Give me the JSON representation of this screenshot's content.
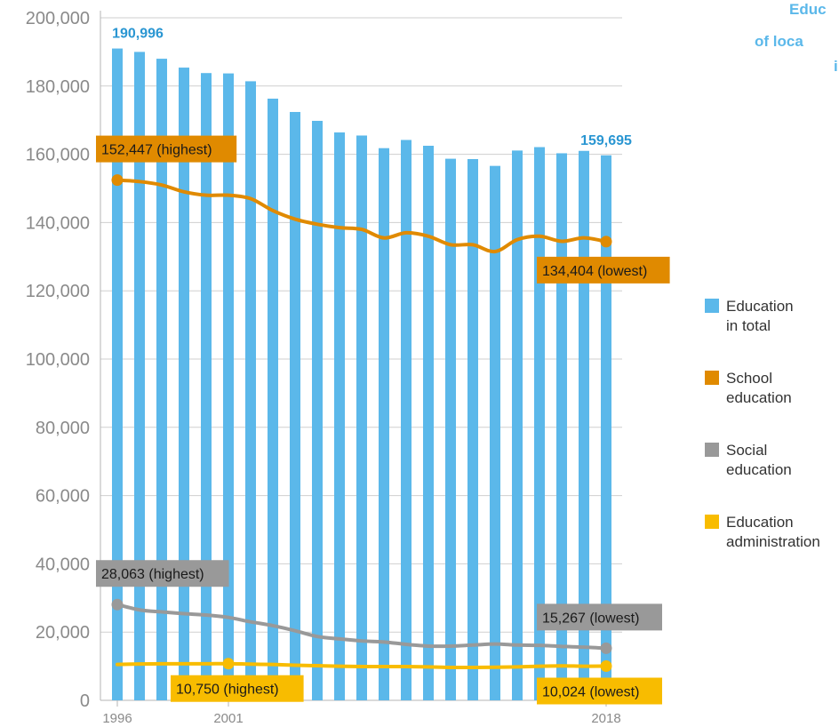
{
  "title": {
    "lines": [
      "Educ",
      "of loca",
      "i"
    ]
  },
  "legend": [
    {
      "line1": "Education",
      "line2": "in total",
      "color": "#5bb8ea"
    },
    {
      "line1": "School",
      "line2": "education",
      "color": "#e08a00"
    },
    {
      "line1": "Social",
      "line2": "education",
      "color": "#999999"
    },
    {
      "line1": "Education",
      "line2": "administration",
      "color": "#f8bc00"
    }
  ],
  "chart_data": {
    "type": "bar",
    "ylim": [
      0,
      200000
    ],
    "y_ticks": [
      "0",
      "20,000",
      "40,000",
      "60,000",
      "80,000",
      "100,000",
      "120,000",
      "140,000",
      "160,000",
      "180,000",
      "200,000"
    ],
    "y_tick_values": [
      0,
      20000,
      40000,
      60000,
      80000,
      100000,
      120000,
      140000,
      160000,
      180000,
      200000
    ],
    "x": [
      1996,
      1997,
      1998,
      1999,
      2000,
      2001,
      2002,
      2003,
      2004,
      2005,
      2006,
      2007,
      2008,
      2009,
      2010,
      2011,
      2012,
      2013,
      2014,
      2015,
      2016,
      2017,
      2018
    ],
    "x_tick_labels": [
      {
        "year": 1996,
        "label": "1996"
      },
      {
        "year": 2001,
        "label": "2001"
      },
      {
        "year": 2018,
        "label": "2018"
      }
    ],
    "grid": true,
    "legend_position": "right",
    "series": [
      {
        "name": "Education in total",
        "kind": "bar",
        "color": "#5bb8ea",
        "values": [
          190996,
          190000,
          188000,
          185400,
          183800,
          183700,
          181400,
          176300,
          172400,
          169800,
          166400,
          165500,
          161800,
          164200,
          162500,
          158700,
          158600,
          156600,
          161100,
          162100,
          160300,
          161000,
          159695
        ]
      },
      {
        "name": "School education",
        "kind": "line",
        "color": "#e08a00",
        "values": [
          152447,
          152000,
          151000,
          149000,
          148000,
          148000,
          147000,
          143500,
          141000,
          139500,
          138500,
          138000,
          135500,
          137000,
          136000,
          133500,
          133500,
          131500,
          135000,
          136000,
          134500,
          135500,
          134404
        ]
      },
      {
        "name": "Social education",
        "kind": "line",
        "color": "#999999",
        "values": [
          28063,
          26500,
          25900,
          25400,
          25000,
          24300,
          23000,
          21900,
          20400,
          18700,
          18000,
          17400,
          17100,
          16400,
          15900,
          15900,
          16200,
          16500,
          16200,
          16100,
          15800,
          15600,
          15267
        ]
      },
      {
        "name": "Education administration",
        "kind": "line",
        "color": "#f8bc00",
        "values": [
          10500,
          10650,
          10700,
          10700,
          10700,
          10750,
          10600,
          10500,
          10300,
          10150,
          10000,
          9900,
          9900,
          9900,
          9800,
          9650,
          9650,
          9700,
          9800,
          10000,
          10100,
          10000,
          10024
        ]
      }
    ],
    "bar_labels": [
      {
        "year": 1996,
        "text": "190,996"
      },
      {
        "year": 2018,
        "text": "159,695"
      }
    ],
    "annotations": [
      {
        "series": 1,
        "year": 1996,
        "text": "152,447 (highest)",
        "color": "#e08a00",
        "text_color": "#1a1a1a"
      },
      {
        "series": 1,
        "year": 2018,
        "text": "134,404 (lowest)",
        "color": "#e08a00",
        "text_color": "#1a1a1a"
      },
      {
        "series": 2,
        "year": 1996,
        "text": "28,063 (highest)",
        "color": "#999999",
        "text_color": "#1a1a1a"
      },
      {
        "series": 2,
        "year": 2018,
        "text": "15,267 (lowest)",
        "color": "#999999",
        "text_color": "#1a1a1a"
      },
      {
        "series": 3,
        "year": 2001,
        "text": "10,750 (highest)",
        "color": "#f8bc00",
        "text_color": "#1a1a1a"
      },
      {
        "series": 3,
        "year": 2018,
        "text": "10,024 (lowest)",
        "color": "#f8bc00",
        "text_color": "#1a1a1a"
      }
    ]
  }
}
